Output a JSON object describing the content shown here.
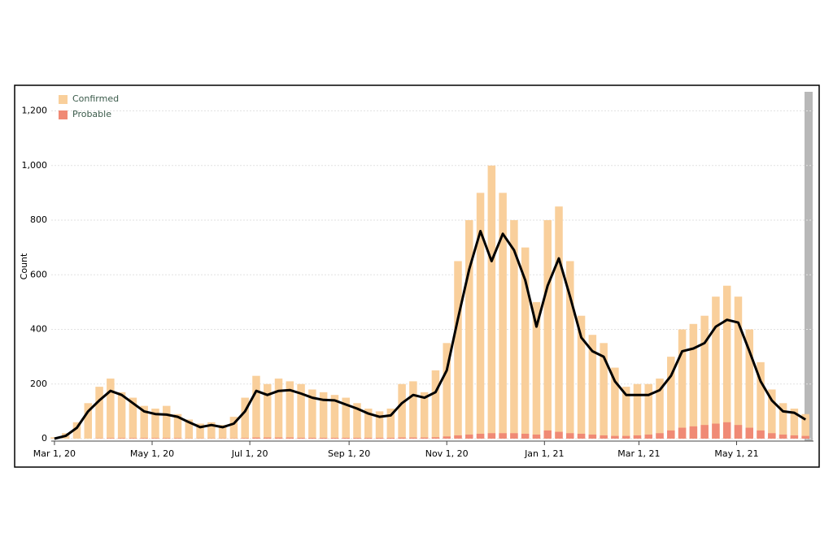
{
  "chart_data": {
    "type": "bar",
    "y_label": "Count",
    "x": [
      "2020-03-01",
      "2020-03-08",
      "2020-03-15",
      "2020-03-22",
      "2020-03-29",
      "2020-04-05",
      "2020-04-12",
      "2020-04-19",
      "2020-04-26",
      "2020-05-03",
      "2020-05-10",
      "2020-05-17",
      "2020-05-24",
      "2020-05-31",
      "2020-06-07",
      "2020-06-14",
      "2020-06-21",
      "2020-06-28",
      "2020-07-05",
      "2020-07-12",
      "2020-07-19",
      "2020-07-26",
      "2020-08-02",
      "2020-08-09",
      "2020-08-16",
      "2020-08-23",
      "2020-08-30",
      "2020-09-06",
      "2020-09-13",
      "2020-09-20",
      "2020-09-27",
      "2020-10-04",
      "2020-10-11",
      "2020-10-18",
      "2020-10-25",
      "2020-11-01",
      "2020-11-08",
      "2020-11-15",
      "2020-11-22",
      "2020-11-29",
      "2020-12-06",
      "2020-12-13",
      "2020-12-20",
      "2020-12-27",
      "2021-01-03",
      "2021-01-10",
      "2021-01-17",
      "2021-01-24",
      "2021-01-31",
      "2021-02-07",
      "2021-02-14",
      "2021-02-21",
      "2021-02-28",
      "2021-03-07",
      "2021-03-14",
      "2021-03-21",
      "2021-03-28",
      "2021-04-04",
      "2021-04-11",
      "2021-04-18",
      "2021-04-25",
      "2021-05-02",
      "2021-05-09",
      "2021-05-16",
      "2021-05-23",
      "2021-05-30",
      "2021-06-06",
      "2021-06-13"
    ],
    "series": [
      {
        "name": "Confirmed",
        "color": "#f9cf9b",
        "values": [
          5,
          20,
          60,
          130,
          190,
          220,
          170,
          150,
          120,
          110,
          120,
          90,
          70,
          55,
          60,
          50,
          80,
          150,
          230,
          200,
          220,
          210,
          200,
          180,
          170,
          160,
          150,
          130,
          110,
          100,
          110,
          200,
          210,
          170,
          250,
          350,
          650,
          800,
          900,
          1000,
          900,
          800,
          700,
          500,
          800,
          850,
          650,
          450,
          380,
          350,
          260,
          190,
          200,
          200,
          220,
          300,
          400,
          420,
          450,
          520,
          560,
          520,
          400,
          280,
          180,
          130,
          110,
          90
        ]
      },
      {
        "name": "Probable",
        "color": "#f08a75",
        "values": [
          0,
          0,
          0,
          0,
          1,
          2,
          2,
          2,
          2,
          2,
          2,
          2,
          1,
          1,
          1,
          1,
          1,
          2,
          4,
          4,
          4,
          4,
          3,
          3,
          3,
          3,
          3,
          3,
          3,
          3,
          3,
          4,
          4,
          4,
          5,
          8,
          12,
          15,
          18,
          20,
          20,
          20,
          18,
          15,
          30,
          25,
          20,
          18,
          15,
          12,
          10,
          10,
          12,
          15,
          20,
          30,
          40,
          45,
          50,
          55,
          60,
          50,
          40,
          30,
          20,
          15,
          12,
          10
        ]
      }
    ],
    "line": {
      "color": "#000000",
      "values": [
        0,
        10,
        40,
        100,
        140,
        175,
        160,
        130,
        100,
        90,
        88,
        80,
        60,
        42,
        50,
        42,
        55,
        100,
        175,
        160,
        175,
        178,
        165,
        150,
        142,
        140,
        125,
        110,
        92,
        80,
        85,
        130,
        160,
        150,
        170,
        250,
        440,
        620,
        760,
        650,
        750,
        690,
        580,
        410,
        560,
        660,
        520,
        370,
        320,
        300,
        210,
        160,
        160,
        160,
        178,
        230,
        320,
        330,
        350,
        410,
        435,
        425,
        320,
        210,
        140,
        100,
        95,
        70
      ]
    },
    "xlim": [
      "2020-02-28",
      "2021-06-18"
    ],
    "xticks": [
      {
        "value": "2020-03-01",
        "label": "Mar 1, 20"
      },
      {
        "value": "2020-05-01",
        "label": "May 1, 20"
      },
      {
        "value": "2020-07-01",
        "label": "Jul 1, 20"
      },
      {
        "value": "2020-09-01",
        "label": "Sep 1, 20"
      },
      {
        "value": "2020-11-01",
        "label": "Nov 1, 20"
      },
      {
        "value": "2021-01-01",
        "label": "Jan 1, 21"
      },
      {
        "value": "2021-03-01",
        "label": "Mar 1, 21"
      },
      {
        "value": "2021-05-01",
        "label": "May 1, 21"
      }
    ],
    "ylim": [
      0,
      1270
    ],
    "yticks": [
      0,
      200,
      400,
      600,
      800,
      {
        "value": 1000,
        "label": "1,000"
      },
      {
        "value": 1200,
        "label": "1,200"
      }
    ],
    "grid": true
  }
}
